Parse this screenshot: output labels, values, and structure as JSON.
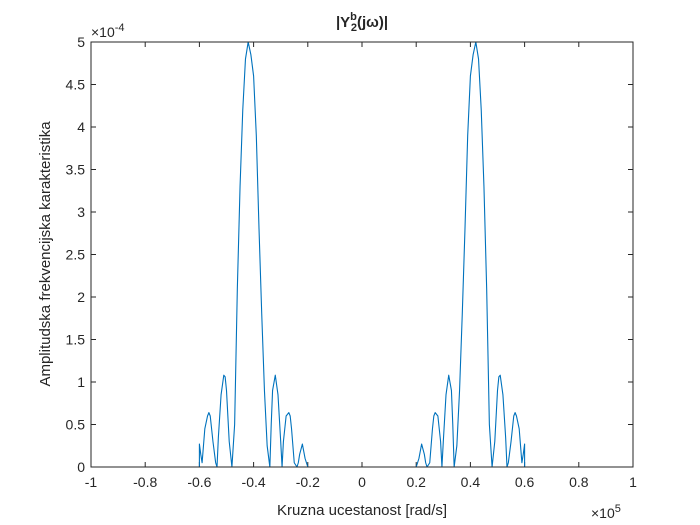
{
  "chart_data": {
    "type": "line",
    "title": {
      "base": "|Y",
      "superscript": "b",
      "subscript": "2",
      "rest": "(jω)|"
    },
    "xlabel": "Kruzna ucestanost [rad/s]",
    "ylabel": "Amplitudska frekvencijska karakteristika",
    "xlim": [
      -1,
      1
    ],
    "ylim": [
      0,
      5
    ],
    "x_exponent": {
      "base": "×10",
      "power": "5"
    },
    "y_exponent": {
      "base": "×10",
      "power": "-4"
    },
    "x_ticks": [
      -1,
      -0.8,
      -0.6,
      -0.4,
      -0.2,
      0,
      0.2,
      0.4,
      0.6,
      0.8,
      1
    ],
    "x_tick_labels": [
      "-1",
      "-0.8",
      "-0.6",
      "-0.4",
      "-0.2",
      "0",
      "0.2",
      "0.4",
      "0.6",
      "0.8",
      "1"
    ],
    "y_ticks": [
      0,
      0.5,
      1,
      1.5,
      2,
      2.5,
      3,
      3.5,
      4,
      4.5,
      5
    ],
    "y_tick_labels": [
      "0",
      "0.5",
      "1",
      "1.5",
      "2",
      "2.5",
      "3",
      "3.5",
      "4",
      "4.5",
      "5"
    ],
    "grid": false,
    "series": [
      {
        "color": "#0072bd",
        "x": [
          -1,
          -0.6,
          -0.6,
          -0.595,
          -0.59,
          -0.58,
          -0.57,
          -0.565,
          -0.56,
          -0.55,
          -0.54,
          -0.535,
          -0.53,
          -0.52,
          -0.51,
          -0.505,
          -0.5,
          -0.49,
          -0.48,
          -0.47,
          -0.465,
          -0.46,
          -0.45,
          -0.44,
          -0.43,
          -0.42,
          -0.41,
          -0.4,
          -0.39,
          -0.38,
          -0.37,
          -0.36,
          -0.35,
          -0.34,
          -0.335,
          -0.33,
          -0.32,
          -0.31,
          -0.3,
          -0.295,
          -0.29,
          -0.28,
          -0.27,
          -0.265,
          -0.26,
          -0.25,
          -0.24,
          -0.235,
          -0.23,
          -0.22,
          -0.21,
          -0.205,
          -0.2,
          -0.2,
          0.2,
          0.2,
          0.205,
          0.21,
          0.22,
          0.23,
          0.235,
          0.24,
          0.25,
          0.26,
          0.265,
          0.27,
          0.28,
          0.29,
          0.295,
          0.3,
          0.31,
          0.32,
          0.33,
          0.335,
          0.34,
          0.35,
          0.36,
          0.37,
          0.38,
          0.39,
          0.4,
          0.41,
          0.42,
          0.43,
          0.44,
          0.45,
          0.46,
          0.465,
          0.47,
          0.48,
          0.49,
          0.5,
          0.505,
          0.51,
          0.52,
          0.53,
          0.535,
          0.54,
          0.55,
          0.56,
          0.565,
          0.57,
          0.58,
          0.59,
          0.595,
          0.6,
          0.6,
          1
        ],
        "y": [
          0,
          0,
          0.27,
          0.15,
          0.05,
          0.45,
          0.6,
          0.64,
          0.6,
          0.3,
          0.05,
          0.0,
          0.35,
          0.85,
          1.08,
          1.06,
          0.9,
          0.3,
          0.0,
          0.5,
          1.3,
          2.1,
          3.3,
          4.2,
          4.8,
          5.0,
          4.85,
          4.6,
          3.9,
          2.8,
          1.8,
          0.9,
          0.25,
          0.0,
          0.5,
          0.9,
          1.08,
          0.85,
          0.3,
          0.0,
          0.3,
          0.6,
          0.64,
          0.6,
          0.45,
          0.05,
          0.0,
          0.05,
          0.15,
          0.27,
          0.1,
          0.05,
          0.0,
          0.0,
          0.0,
          0.0,
          0.05,
          0.1,
          0.27,
          0.15,
          0.05,
          0.0,
          0.05,
          0.45,
          0.6,
          0.64,
          0.6,
          0.3,
          0.0,
          0.3,
          0.85,
          1.08,
          0.9,
          0.5,
          0.0,
          0.25,
          0.9,
          1.8,
          2.8,
          3.9,
          4.6,
          4.85,
          5.0,
          4.8,
          4.2,
          3.3,
          2.1,
          1.3,
          0.5,
          0.0,
          0.3,
          0.9,
          1.06,
          1.08,
          0.85,
          0.35,
          0.0,
          0.05,
          0.3,
          0.6,
          0.64,
          0.6,
          0.45,
          0.05,
          0.15,
          0.27,
          0.0,
          0
        ]
      }
    ]
  }
}
